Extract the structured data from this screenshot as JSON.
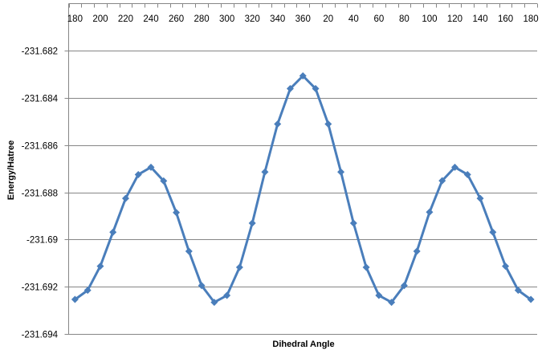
{
  "chart_data": {
    "type": "line",
    "title": "",
    "xlabel": "Dihedral Angle",
    "ylabel": "Energy/Hatree",
    "x_axis_position": "top",
    "categories": [
      "180",
      "190",
      "200",
      "210",
      "220",
      "230",
      "240",
      "250",
      "260",
      "270",
      "280",
      "290",
      "300",
      "310",
      "320",
      "330",
      "340",
      "350",
      "360",
      "10",
      "20",
      "30",
      "40",
      "50",
      "60",
      "70",
      "80",
      "90",
      "100",
      "110",
      "120",
      "130",
      "140",
      "150",
      "160",
      "170",
      "180"
    ],
    "values": [
      -231.69254,
      -231.69215,
      -231.69113,
      -231.68969,
      -231.68826,
      -231.68725,
      -231.68694,
      -231.68752,
      -231.68886,
      -231.6905,
      -231.69195,
      -231.69266,
      -231.69237,
      -231.69118,
      -231.68931,
      -231.68714,
      -231.68511,
      -231.68361,
      -231.68307,
      -231.68361,
      -231.68511,
      -231.68714,
      -231.68931,
      -231.69118,
      -231.69237,
      -231.69266,
      -231.69195,
      -231.6905,
      -231.68884,
      -231.68751,
      -231.68694,
      -231.68725,
      -231.68826,
      -231.68969,
      -231.69113,
      -231.69215,
      -231.69254
    ],
    "ylim": [
      -231.694,
      -231.682
    ],
    "yticks": [
      "-231.682",
      "-231.684",
      "-231.686",
      "-231.688",
      "-231.69",
      "-231.692",
      "-231.694"
    ],
    "ytick_values": [
      -231.682,
      -231.684,
      -231.686,
      -231.688,
      -231.69,
      -231.692,
      -231.694
    ],
    "xtick_label_every": 2,
    "grid": "horizontal",
    "legend": "none",
    "marker": "diamond",
    "colors": {
      "series": "#4a7ebb",
      "grid": "#868686",
      "axis": "#868686"
    }
  }
}
